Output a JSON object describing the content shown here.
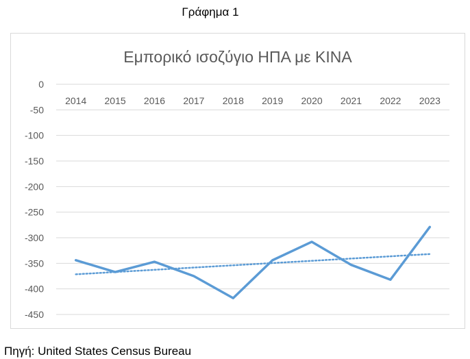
{
  "figure": {
    "caption": "Γράφημα 1",
    "source": "Πηγή: United States Census Bureau"
  },
  "chart_data": {
    "type": "line",
    "title": "Εμπορικό ισοζύγιο ΗΠΑ με ΚΙΝΑ",
    "xlabel": "",
    "ylabel": "",
    "categories": [
      "2014",
      "2015",
      "2016",
      "2017",
      "2018",
      "2019",
      "2020",
      "2021",
      "2022",
      "2023"
    ],
    "series": [
      {
        "values": [
          -344,
          -367,
          -347,
          -375,
          -418,
          -344,
          -308,
          -353,
          -382,
          -279
        ],
        "color": "#5b9bd5"
      }
    ],
    "trendline": {
      "type": "linear",
      "style": "dotted",
      "color": "#5b9bd5"
    },
    "ylim": [
      -450,
      0
    ],
    "yticks": [
      0,
      -50,
      -100,
      -150,
      -200,
      -250,
      -300,
      -350,
      -400,
      -450
    ],
    "ytick_labels": [
      "0",
      "-50",
      "-100",
      "-150",
      "-200",
      "-250",
      "-300",
      "-350",
      "-400",
      "-450"
    ],
    "grid": true,
    "legend": "none"
  }
}
